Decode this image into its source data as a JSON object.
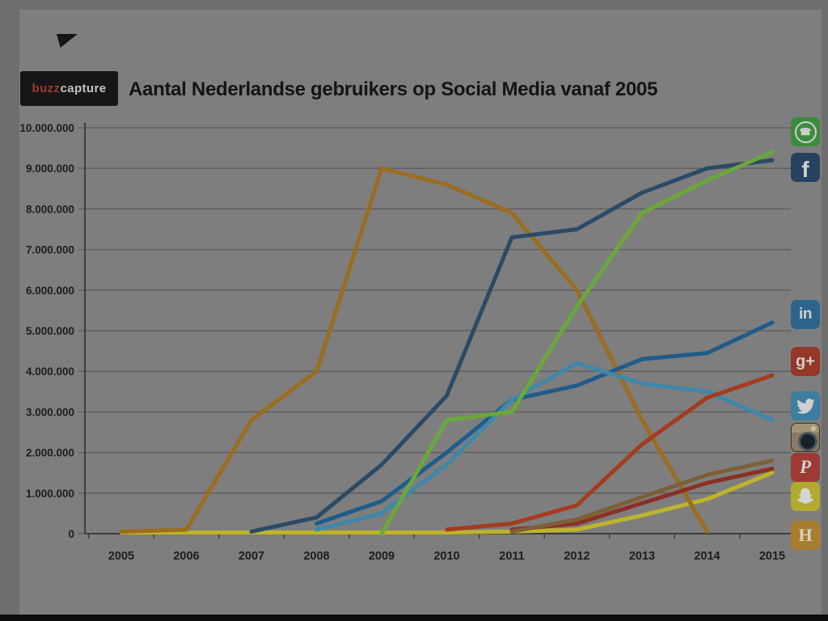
{
  "logo": {
    "brand_red": "buzz",
    "brand_white": "capture"
  },
  "title": "Aantal Nederlandse gebruikers op Social Media vanaf 2005",
  "icons": {
    "whatsapp": {
      "name": "WhatsApp",
      "bg": "#3c8c40"
    },
    "facebook": {
      "name": "Facebook",
      "bg": "#28415f",
      "glyph": "f"
    },
    "linkedin": {
      "name": "LinkedIn",
      "bg": "#2d648c",
      "glyph": "in"
    },
    "googleplus": {
      "name": "Google+",
      "bg": "#963728",
      "glyph": "g+"
    },
    "twitter": {
      "name": "Twitter",
      "bg": "#3c7da0"
    },
    "instagram": {
      "name": "Instagram",
      "bg": "#8a7a64"
    },
    "pinterest": {
      "name": "Pinterest",
      "bg": "#9e3a36",
      "glyph": "P"
    },
    "snapchat": {
      "name": "Snapchat",
      "bg": "#b2aa30"
    },
    "hyves": {
      "name": "Hyves",
      "bg": "#a87e2e",
      "glyph": "H"
    }
  },
  "chart_data": {
    "type": "line",
    "title": "Aantal Nederlandse gebruikers op Social Media vanaf 2005",
    "categories": [
      "2005",
      "2006",
      "2007",
      "2008",
      "2009",
      "2010",
      "2011",
      "2012",
      "2013",
      "2014",
      "2015"
    ],
    "y_tick_labels": [
      "10.000.000",
      "9.000.000",
      "8.000.000",
      "7.000.000",
      "6.000.000",
      "5.000.000",
      "4.000.000",
      "3.000.000",
      "2.000.000",
      "1.000.000",
      "0"
    ],
    "ylim": [
      0,
      10000000
    ],
    "values_unit": "users (millions)",
    "grid": "horizontal",
    "legend_position": "right-icons",
    "series": [
      {
        "name": "Hyves",
        "color": "#9c6c1f",
        "values_in_millions": [
          0.05,
          0.1,
          2.8,
          4.0,
          9.0,
          8.6,
          7.9,
          6.0,
          2.8,
          0.05,
          null
        ]
      },
      {
        "name": "Facebook",
        "color": "#2b4a66",
        "values_in_millions": [
          null,
          null,
          0.05,
          0.4,
          1.7,
          3.4,
          7.3,
          7.5,
          8.4,
          9.0,
          9.2
        ]
      },
      {
        "name": "WhatsApp",
        "color": "#6aa83a",
        "values_in_millions": [
          null,
          null,
          null,
          null,
          0,
          2.8,
          3.0,
          5.6,
          7.9,
          8.7,
          9.4
        ]
      },
      {
        "name": "LinkedIn",
        "color": "#1f5c8a",
        "values_in_millions": [
          null,
          null,
          null,
          0.25,
          0.8,
          2.0,
          3.3,
          3.65,
          4.3,
          4.45,
          5.2
        ]
      },
      {
        "name": "Twitter",
        "color": "#3e88ab",
        "values_in_millions": [
          null,
          null,
          null,
          0.1,
          0.5,
          1.7,
          3.3,
          4.2,
          3.7,
          3.5,
          2.8
        ]
      },
      {
        "name": "Google+",
        "color": "#a53b20",
        "values_in_millions": [
          null,
          null,
          null,
          null,
          null,
          0.1,
          0.25,
          0.7,
          2.2,
          3.35,
          3.9
        ]
      },
      {
        "name": "Instagram",
        "color": "#7d6036",
        "values_in_millions": [
          null,
          null,
          null,
          null,
          null,
          null,
          0.05,
          0.35,
          0.9,
          1.45,
          1.8
        ]
      },
      {
        "name": "Pinterest",
        "color": "#8c2f24",
        "values_in_millions": [
          null,
          null,
          null,
          null,
          null,
          null,
          0.1,
          0.25,
          0.75,
          1.25,
          1.6
        ]
      },
      {
        "name": "Snapchat",
        "color": "#bfb32a",
        "values_in_millions": [
          0.03,
          0.03,
          0.03,
          0.03,
          0.03,
          0.03,
          0.05,
          0.1,
          0.45,
          0.85,
          1.5
        ]
      }
    ],
    "draw_order": [
      "Snapchat",
      "Hyves",
      "Pinterest",
      "Instagram",
      "LinkedIn",
      "Twitter",
      "Google+",
      "Facebook",
      "WhatsApp"
    ]
  }
}
